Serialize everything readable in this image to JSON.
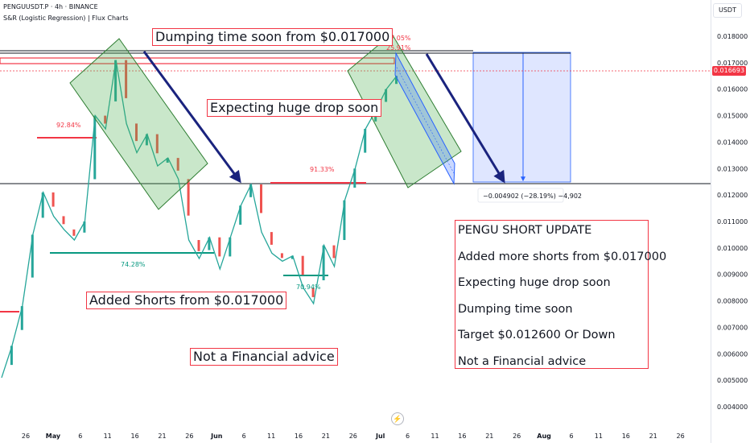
{
  "header": {
    "symbol_line": "PENGUUSDT.P · 4h · BINANCE",
    "indicator_line": "S&R (Logistic Regression) | Flux Charts"
  },
  "price_scale": {
    "currency_button": "USDT",
    "current_price_tag": "0.016693",
    "current_price_color": "#f23645"
  },
  "annotations": {
    "top_note": "Dumping time soon from $0.017000",
    "mid_note": "Expecting huge drop soon",
    "shorts_note": "Added Shorts from $0.017000",
    "disclaimer_note": "Not a Financial advice",
    "measure_label": "−0.004902 (−28.19%) −4,902",
    "percent_labels": [
      "92.84%",
      "74.28%",
      "91.33%",
      "70.94%",
      "97.05%",
      "25.91%"
    ]
  },
  "summary_box": {
    "lines": [
      "PENGU SHORT UPDATE",
      "Added more shorts from $0.017000",
      "Expecting huge drop soon",
      "Dumping time soon",
      "Target $0.012600 Or Down",
      "Not a Financial advice"
    ]
  },
  "chart_data": {
    "type": "line",
    "title": "PENGUUSDT.P · 4h · BINANCE",
    "xlabel": "",
    "ylabel": "",
    "ylim": [
      0.0038,
      0.0189
    ],
    "grid": false,
    "y_ticks": [
      "0.018000",
      "0.017000",
      "0.016000",
      "0.015000",
      "0.014000",
      "0.013000",
      "0.012000",
      "0.011000",
      "0.010000",
      "0.009000",
      "0.008000",
      "0.007000",
      "0.006000",
      "0.005000",
      "0.004000"
    ],
    "x_ticks": [
      "26",
      "May",
      "6",
      "11",
      "16",
      "21",
      "26",
      "Jun",
      "6",
      "11",
      "16",
      "21",
      "26",
      "Jul",
      "6",
      "11",
      "16",
      "21",
      "26",
      "Aug",
      "6",
      "11",
      "16",
      "21",
      "26"
    ],
    "series": [
      {
        "name": "PENGUUSDT.P",
        "x": [
          "Apr 23",
          "Apr 25",
          "Apr 27",
          "Apr 29",
          "May 1",
          "May 3",
          "May 5",
          "May 7",
          "May 9",
          "May 11",
          "May 13",
          "May 14",
          "May 16",
          "May 18",
          "May 20",
          "May 22",
          "May 25",
          "May 28",
          "May 31",
          "Jun 2",
          "Jun 4",
          "Jun 6",
          "Jun 8",
          "Jun 10",
          "Jun 11",
          "Jun 13",
          "Jun 15",
          "Jun 18",
          "Jun 20",
          "Jun 22",
          "Jun 23",
          "Jun 25",
          "Jun 27",
          "Jun 29",
          "Jul 1",
          "Jul 2",
          "Jul 3",
          "Jul 4",
          "Jul 5"
        ],
        "values": [
          0.0051,
          0.0063,
          0.0078,
          0.0105,
          0.0121,
          0.0112,
          0.0107,
          0.0103,
          0.011,
          0.015,
          0.0145,
          0.0171,
          0.0147,
          0.0136,
          0.0143,
          0.0131,
          0.0134,
          0.0126,
          0.0103,
          0.0096,
          0.0104,
          0.0092,
          0.0104,
          0.0116,
          0.0124,
          0.0106,
          0.0098,
          0.0095,
          0.0097,
          0.0085,
          0.0079,
          0.0101,
          0.0093,
          0.0118,
          0.013,
          0.0145,
          0.0152,
          0.016,
          0.0165
        ]
      }
    ],
    "levels": {
      "resistance": 0.01705,
      "entry": 0.017,
      "support": 0.01245,
      "current_price": 0.016693
    },
    "measure": {
      "from": 0.0174,
      "to": 0.01245,
      "label": "−0.004902 (−28.19%) −4,902"
    }
  }
}
